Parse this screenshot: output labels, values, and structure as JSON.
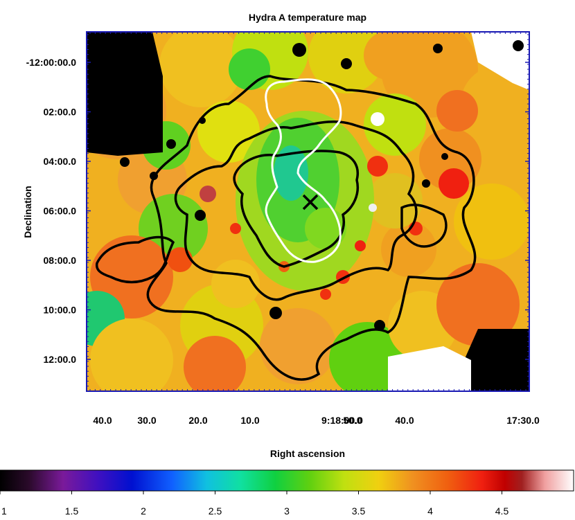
{
  "chart_data": {
    "type": "heatmap",
    "title": "Hydra A temperature map",
    "xlabel": "Right ascension",
    "ylabel": "Declination",
    "x_ticks": [
      "40.0",
      "30.0",
      "20.0",
      "10.0",
      "9:18:00.0",
      "50.0",
      "40.0",
      "17:30.0"
    ],
    "y_ticks": [
      "-12:00:00.0",
      "02:00.0",
      "04:00.0",
      "06:00.0",
      "08:00.0",
      "10:00.0",
      "12:00.0"
    ],
    "colorbar": {
      "ticks": [
        "1",
        "1.5",
        "2",
        "2.5",
        "3",
        "3.5",
        "4",
        "4.5"
      ],
      "range": [
        1,
        5
      ]
    },
    "colors": {
      "frame": "#1a1ab4",
      "radio_contour": "#000000",
      "xray_contour": "#ffffff"
    }
  }
}
